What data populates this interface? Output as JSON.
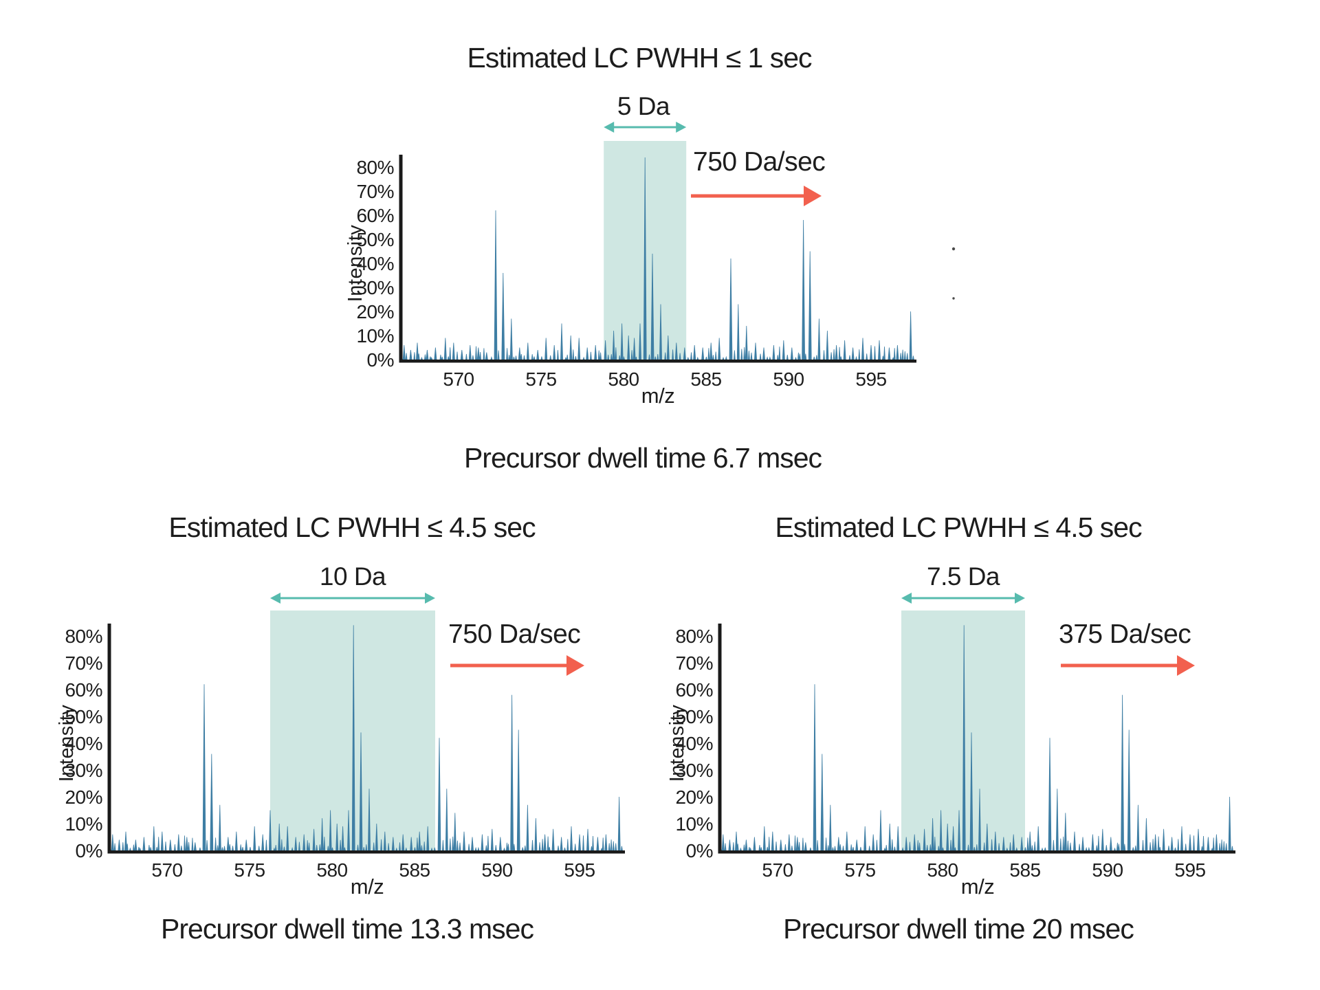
{
  "figure": {
    "background": "#ffffff"
  },
  "colors": {
    "spectrum": "#3E7EA4",
    "highlight_box": "#CFE7E2",
    "teal_arrow": "#57BBAE",
    "red_arrow": "#F2604E",
    "axis": "#1A1A1A",
    "text": "#1D1D1D"
  },
  "charts": [
    {
      "title": "Estimated LC PWHH ≤ 1 sec",
      "window_label": "5 Da",
      "window_da": 5,
      "window_mz": [
        578.8,
        583.8
      ],
      "scan_speed": "750 Da/sec",
      "caption": "Precursor dwell time 6.7 msec",
      "xlabel": "m/z",
      "ylabel": "Intensity"
    },
    {
      "title": "Estimated LC PWHH ≤ 4.5 sec",
      "window_label": "10 Da",
      "window_da": 10,
      "window_mz": [
        576.25,
        586.25
      ],
      "scan_speed": "750 Da/sec",
      "caption": "Precursor dwell time 13.3 msec",
      "xlabel": "m/z",
      "ylabel": "Intensity"
    },
    {
      "title": "Estimated LC PWHH ≤ 4.5 sec",
      "window_label": "7.5 Da",
      "window_da": 7.5,
      "window_mz": [
        577.5,
        585.0
      ],
      "scan_speed": "375 Da/sec",
      "caption": "Precursor dwell time 20 msec",
      "xlabel": "m/z",
      "ylabel": "Intensity"
    }
  ],
  "chart_data": {
    "type": "line",
    "subtype": "mass-spectrum",
    "shared_across_charts": true,
    "xlabel": "m/z",
    "ylabel": "Intensity",
    "xlim": [
      566.5,
      597.75
    ],
    "ylim_pct": [
      0,
      88
    ],
    "x_ticks": [
      570,
      575,
      580,
      585,
      590,
      595
    ],
    "y_ticks_pct": [
      0,
      10,
      20,
      30,
      40,
      50,
      60,
      70,
      80
    ],
    "grid": false,
    "peaks_mz_pct": [
      [
        566.7,
        6
      ],
      [
        567.1,
        4
      ],
      [
        567.5,
        7
      ],
      [
        568.1,
        4
      ],
      [
        568.6,
        5
      ],
      [
        569.2,
        9
      ],
      [
        569.7,
        7
      ],
      [
        570.2,
        4
      ],
      [
        570.7,
        6
      ],
      [
        571.2,
        5
      ],
      [
        571.7,
        3
      ],
      [
        572.25,
        62
      ],
      [
        572.7,
        36
      ],
      [
        573.2,
        17
      ],
      [
        573.7,
        5
      ],
      [
        574.2,
        7
      ],
      [
        574.8,
        4
      ],
      [
        575.3,
        9
      ],
      [
        575.8,
        6
      ],
      [
        576.25,
        15
      ],
      [
        576.8,
        10
      ],
      [
        577.3,
        9
      ],
      [
        577.8,
        5
      ],
      [
        578.3,
        6
      ],
      [
        578.9,
        8
      ],
      [
        579.4,
        12
      ],
      [
        579.9,
        15
      ],
      [
        580.3,
        10
      ],
      [
        580.65,
        9
      ],
      [
        581.0,
        15
      ],
      [
        581.3,
        84
      ],
      [
        581.75,
        44
      ],
      [
        582.25,
        23
      ],
      [
        582.7,
        10
      ],
      [
        583.2,
        7
      ],
      [
        583.7,
        5
      ],
      [
        584.3,
        6
      ],
      [
        584.8,
        5
      ],
      [
        585.3,
        7
      ],
      [
        585.8,
        9
      ],
      [
        586.5,
        42
      ],
      [
        586.95,
        23
      ],
      [
        587.45,
        14
      ],
      [
        588.0,
        7
      ],
      [
        588.5,
        5
      ],
      [
        589.1,
        6
      ],
      [
        589.7,
        8
      ],
      [
        590.2,
        5
      ],
      [
        590.9,
        58
      ],
      [
        591.3,
        45
      ],
      [
        591.85,
        17
      ],
      [
        592.35,
        12
      ],
      [
        592.9,
        6
      ],
      [
        593.4,
        8
      ],
      [
        593.9,
        5
      ],
      [
        594.5,
        9
      ],
      [
        595.0,
        6
      ],
      [
        595.5,
        8
      ],
      [
        596.1,
        5
      ],
      [
        596.6,
        6
      ],
      [
        597.4,
        20
      ]
    ],
    "noise": {
      "seed": 42,
      "spacing_da": 0.155,
      "min_pct": 0.8,
      "max_pct": 5.6,
      "note": "dense baseline noise spikes, identical in all three panels"
    }
  }
}
